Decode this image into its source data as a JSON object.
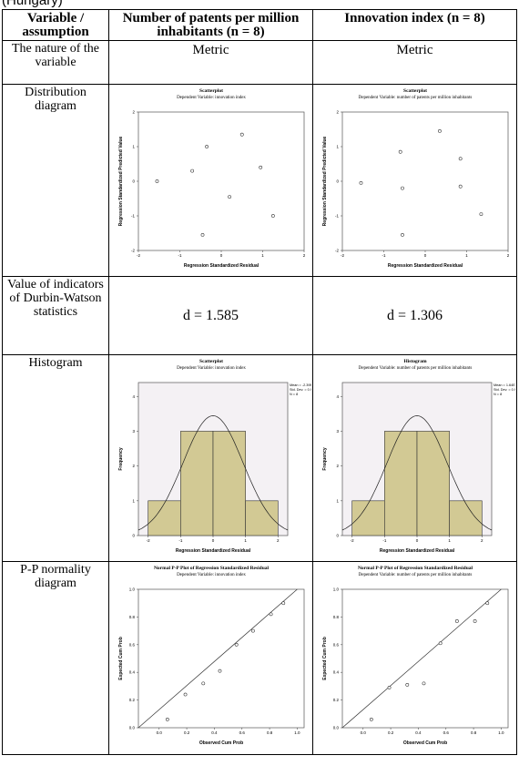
{
  "caption_fragment": "(Hungary)",
  "columns": [
    "Variable / assumption",
    "Number of patents per million inhabitants (n = 8)",
    "Innovation index (n = 8)"
  ],
  "rows": {
    "nature": {
      "label": "The nature of the variable",
      "left": "Metric",
      "right": "Metric"
    },
    "distribution": {
      "label": "Distribution diagram"
    },
    "durbin": {
      "label": "Value of indicators of Durbin-Watson statistics",
      "left": "d = 1.585",
      "right": "d = 1.306"
    },
    "histogram": {
      "label": "Histogram"
    },
    "pp": {
      "label": "P-P normality diagram"
    }
  },
  "chart_data": [
    {
      "type": "scatter",
      "title": "Scatterplot",
      "subtitle": "Dependent Variable: innovation index",
      "xlabel": "Regression Standardized Residual",
      "ylabel": "Regression Standardized Predicted Value",
      "xlim": [
        -2,
        2
      ],
      "ylim": [
        -2,
        2
      ],
      "xticks": [
        "-2",
        "-1",
        "0",
        "1",
        "2"
      ],
      "yticks": [
        "-2",
        "-1",
        "0",
        "1",
        "2"
      ],
      "points": [
        [
          -1.55,
          0.0
        ],
        [
          -0.7,
          0.3
        ],
        [
          -0.35,
          1.0
        ],
        [
          -0.45,
          -1.55
        ],
        [
          0.2,
          -0.45
        ],
        [
          0.5,
          1.35
        ],
        [
          0.95,
          0.4
        ],
        [
          1.25,
          -1.0
        ]
      ]
    },
    {
      "type": "scatter",
      "title": "Scatterplot",
      "subtitle": "Dependent Variable: number of patents per million inhabitants",
      "xlabel": "Regression Standardized Residual",
      "ylabel": "Regression Standardized Predicted Value",
      "xlim": [
        -2,
        2
      ],
      "ylim": [
        -2,
        2
      ],
      "xticks": [
        "-2",
        "-1",
        "0",
        "1",
        "2"
      ],
      "yticks": [
        "-2",
        "-1",
        "0",
        "1",
        "2"
      ],
      "points": [
        [
          -1.55,
          -0.05
        ],
        [
          -0.6,
          0.85
        ],
        [
          -0.55,
          -0.2
        ],
        [
          -0.55,
          -1.55
        ],
        [
          0.35,
          1.45
        ],
        [
          0.85,
          0.65
        ],
        [
          0.85,
          -0.15
        ],
        [
          1.35,
          -0.95
        ]
      ]
    },
    {
      "type": "histogram",
      "title": "Scatterplot",
      "subtitle": "Dependent Variable: innovation index",
      "xlabel": "Regression Standardized Residual",
      "ylabel": "Frequency",
      "xlim": [
        -2.3,
        2.3
      ],
      "ylim": [
        0,
        4.4
      ],
      "xticks": [
        "-2",
        "-1",
        "0",
        "1",
        "2"
      ],
      "yticks": [
        "0",
        "1",
        "2",
        "3",
        "4"
      ],
      "bins": [
        [
          -2,
          -1,
          1
        ],
        [
          -1,
          0,
          3
        ],
        [
          0,
          1,
          3
        ],
        [
          1,
          2,
          1
        ]
      ],
      "stats": [
        "Mean = -2.39E-15",
        "Std. Dev. = 0.926",
        "N = 8"
      ],
      "curve": {
        "mean": 0,
        "sd": 0.926,
        "n": 8,
        "binwidth": 1
      }
    },
    {
      "type": "histogram",
      "title": "Histogram",
      "subtitle": "Dependent Variable: number of patents per million inhabitants",
      "xlabel": "Regression Standardized Residual",
      "ylabel": "Frequency",
      "xlim": [
        -2.3,
        2.3
      ],
      "ylim": [
        0,
        4.4
      ],
      "xticks": [
        "-2",
        "-1",
        "0",
        "1",
        "2"
      ],
      "yticks": [
        "0",
        "1",
        "2",
        "3",
        "4"
      ],
      "bins": [
        [
          -2,
          -1,
          1
        ],
        [
          -1,
          0,
          3
        ],
        [
          0,
          1,
          3
        ],
        [
          1,
          2,
          1
        ]
      ],
      "stats": [
        "Mean = 1.64E-15",
        "Std. Dev. = 0.926",
        "N = 8"
      ],
      "curve": {
        "mean": 0,
        "sd": 0.926,
        "n": 8,
        "binwidth": 1
      }
    },
    {
      "type": "scatter",
      "title": "Normal P-P Plot of Regression Standardized Residual",
      "subtitle": "Dependent Variable: innovation index",
      "xlabel": "Observed Cum Prob",
      "ylabel": "Expected Cum Prob",
      "xlim": [
        -0.15,
        1.05
      ],
      "ylim": [
        0,
        1.0
      ],
      "xticks": [
        "0.0",
        "0.2",
        "0.4",
        "0.6",
        "0.8",
        "1.0"
      ],
      "yticks": [
        "0.0",
        "0.2",
        "0.4",
        "0.6",
        "0.8",
        "1.0"
      ],
      "points": [
        [
          0.06,
          0.06
        ],
        [
          0.19,
          0.24
        ],
        [
          0.32,
          0.32
        ],
        [
          0.44,
          0.41
        ],
        [
          0.56,
          0.6
        ],
        [
          0.68,
          0.7
        ],
        [
          0.81,
          0.82
        ],
        [
          0.9,
          0.9
        ]
      ],
      "reference_line": [
        [
          -0.15,
          -0.15
        ],
        [
          1.0,
          1.0
        ]
      ]
    },
    {
      "type": "scatter",
      "title": "Normal P-P Plot of Regression Standardized Residual",
      "subtitle": "Dependent Variable: number of patents per million inhabitants",
      "xlabel": "Observed Cum Prob",
      "ylabel": "Expected Cum Prob",
      "xlim": [
        -0.15,
        1.05
      ],
      "ylim": [
        0,
        1.0
      ],
      "xticks": [
        "0.0",
        "0.2",
        "0.4",
        "0.6",
        "0.8",
        "1.0"
      ],
      "yticks": [
        "0.0",
        "0.2",
        "0.4",
        "0.6",
        "0.8",
        "1.0"
      ],
      "points": [
        [
          0.06,
          0.06
        ],
        [
          0.19,
          0.29
        ],
        [
          0.32,
          0.31
        ],
        [
          0.44,
          0.32
        ],
        [
          0.56,
          0.61
        ],
        [
          0.68,
          0.77
        ],
        [
          0.81,
          0.77
        ],
        [
          0.9,
          0.9
        ]
      ],
      "reference_line": [
        [
          -0.15,
          -0.15
        ],
        [
          1.0,
          1.0
        ]
      ]
    }
  ]
}
